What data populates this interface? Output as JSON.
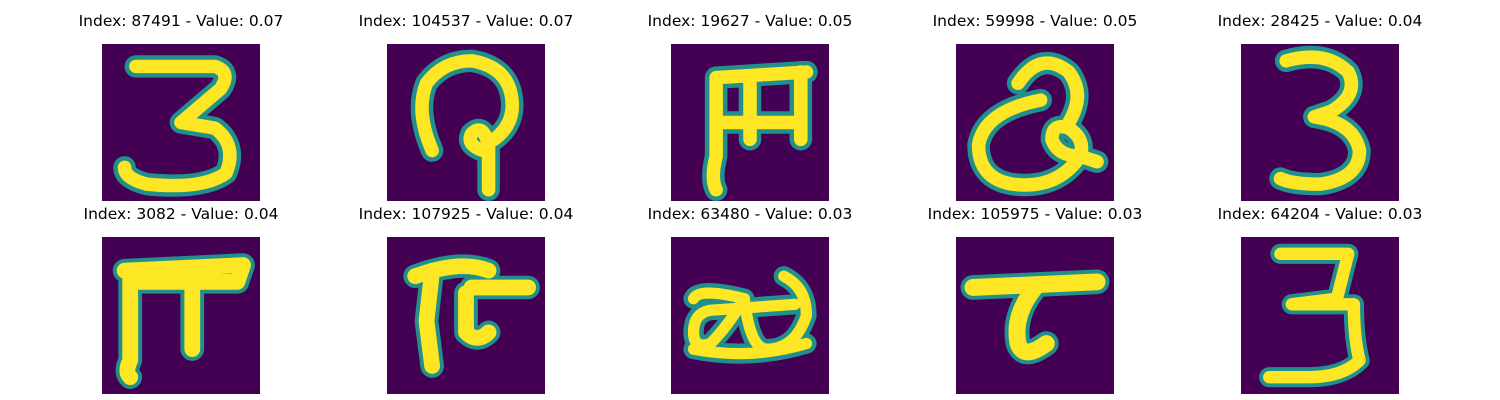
{
  "figure": {
    "colors": {
      "background": "#440154",
      "stroke_core": "#fde725",
      "stroke_edge": "#35b779",
      "stroke_halo": "#21908d"
    },
    "panels": [
      {
        "title": "Index: 87491 - Value: 0.07",
        "glyph": "3"
      },
      {
        "title": "Index: 104537 - Value: 0.07",
        "glyph": "hook-loop"
      },
      {
        "title": "Index: 19627 - Value: 0.05",
        "glyph": "m-shape"
      },
      {
        "title": "Index: 59998 - Value: 0.05",
        "glyph": "heart-loop"
      },
      {
        "title": "Index: 28425 - Value: 0.04",
        "glyph": "3"
      },
      {
        "title": "Index: 3082 - Value: 0.04",
        "glyph": "pi-shape"
      },
      {
        "title": "Index: 107925 - Value: 0.04",
        "glyph": "f-shape"
      },
      {
        "title": "Index: 63480 - Value: 0.03",
        "glyph": "double-loop"
      },
      {
        "title": "Index: 105975 - Value: 0.03",
        "glyph": "t-shape"
      },
      {
        "title": "Index: 64204 - Value: 0.03",
        "glyph": "3"
      }
    ]
  }
}
